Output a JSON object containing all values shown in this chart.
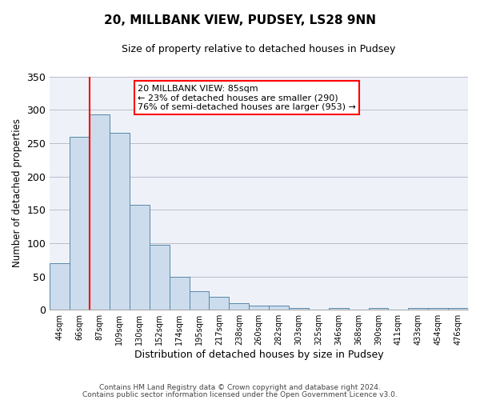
{
  "title": "20, MILLBANK VIEW, PUDSEY, LS28 9NN",
  "subtitle": "Size of property relative to detached houses in Pudsey",
  "xlabel": "Distribution of detached houses by size in Pudsey",
  "ylabel": "Number of detached properties",
  "bar_labels": [
    "44sqm",
    "66sqm",
    "87sqm",
    "109sqm",
    "130sqm",
    "152sqm",
    "174sqm",
    "195sqm",
    "217sqm",
    "238sqm",
    "260sqm",
    "282sqm",
    "303sqm",
    "325sqm",
    "346sqm",
    "368sqm",
    "390sqm",
    "411sqm",
    "433sqm",
    "454sqm",
    "476sqm"
  ],
  "bar_values": [
    70,
    260,
    293,
    265,
    158,
    98,
    49,
    28,
    19,
    10,
    6,
    6,
    3,
    0,
    3,
    0,
    3,
    0,
    3,
    3,
    3
  ],
  "bar_color": "#ccdcec",
  "bar_edge_color": "#5588aa",
  "ylim": [
    0,
    350
  ],
  "yticks": [
    0,
    50,
    100,
    150,
    200,
    250,
    300,
    350
  ],
  "property_line_label": "20 MILLBANK VIEW: 85sqm",
  "annotation_line1": "← 23% of detached houses are smaller (290)",
  "annotation_line2": "76% of semi-detached houses are larger (953) →",
  "box_color": "red",
  "line_color": "red",
  "footer1": "Contains HM Land Registry data © Crown copyright and database right 2024.",
  "footer2": "Contains public sector information licensed under the Open Government Licence v3.0.",
  "bg_color": "#eef2f8",
  "grid_color": "#bbbbcc"
}
